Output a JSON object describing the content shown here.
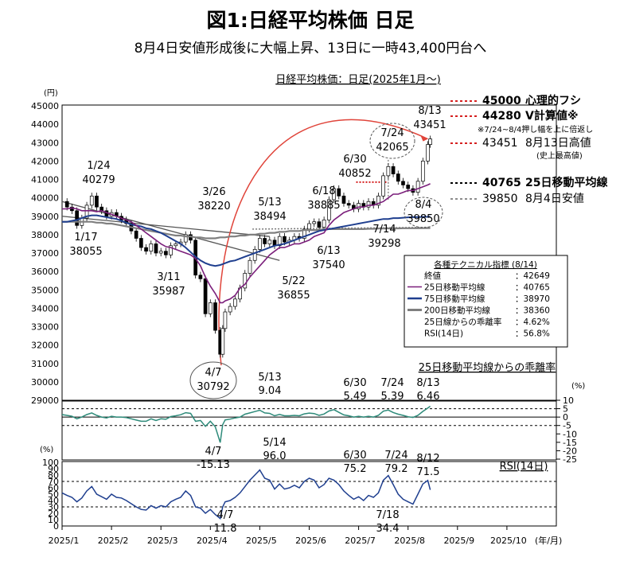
{
  "header": {
    "title": "図1:日経平均株価 日足",
    "subtitle": "8月4日安値形成後に大幅上昇、13日に一時43,400円台へ",
    "chart_title": "日経平均株価：日足(2025年1月～)"
  },
  "labels": {
    "yen_unit": "(円)",
    "pct_unit": "(%)",
    "pct_unit_rsi": "(%)",
    "year_month_unit": "(年/月)",
    "deviation_title": "25日移動平均線からの乖離率",
    "rsi_title": "RSI(14日)",
    "note": "※7/24~8/4押し幅を上に倍返し",
    "note2": "(史上最高値)"
  },
  "right_legend": [
    {
      "value": "45000",
      "label": "心理的フシ",
      "style": "red-dot",
      "bold": true
    },
    {
      "value": "44280",
      "label": "V計算値※",
      "style": "red-dot",
      "bold": true
    },
    {
      "value": "43451",
      "label": "8月13日高値",
      "style": "red-dot",
      "bold": false
    },
    {
      "value": "40765",
      "label": "25日移動平均線",
      "style": "black-dot",
      "bold": true
    },
    {
      "value": "39850",
      "label": "8月4日安値",
      "style": "gray-dot",
      "bold": false
    }
  ],
  "tech_box": {
    "title": "各種テクニカル指標 (8/14)",
    "rows": [
      {
        "label": "終値",
        "value": "：42649",
        "swatch": ""
      },
      {
        "label": "25日移動平均線",
        "value": "：40765",
        "swatch": "#7b1f7b"
      },
      {
        "label": "75日移動平均線",
        "value": "：38970",
        "swatch": "#1f3f8f"
      },
      {
        "label": "200日移動平均線",
        "value": "：38360",
        "swatch": "#7f7f7f"
      },
      {
        "label": "25日線からの乖離率",
        "value": "：4.62%",
        "swatch": ""
      },
      {
        "label": "RSI(14日)",
        "value": "：56.8%",
        "swatch": ""
      }
    ]
  },
  "colors": {
    "ma25": "#7b1f7b",
    "ma75": "#1f3f8f",
    "ma200": "#7f7f7f",
    "deviation": "#2e8b7a",
    "rsi": "#1f3f8f",
    "arc": "#e0443a",
    "red_dot": "#d62020"
  },
  "chart_data": {
    "type": "line",
    "price_axis": {
      "min": 29000,
      "max": 45000,
      "ticks": [
        29000,
        30000,
        31000,
        32000,
        33000,
        34000,
        35000,
        36000,
        37000,
        38000,
        39000,
        40000,
        41000,
        42000,
        43000,
        44000,
        45000
      ]
    },
    "deviation_axis": {
      "min": -25,
      "max": 10,
      "ticks": [
        10,
        5,
        0,
        -5,
        -10,
        -15,
        -20,
        -25
      ]
    },
    "rsi_axis": {
      "min": 0,
      "max": 100,
      "ticks": [
        0,
        10,
        20,
        30,
        40,
        50,
        60,
        70,
        80,
        90,
        100
      ]
    },
    "x_categories": [
      "2025/1",
      "2025/2",
      "2025/3",
      "2025/4",
      "2025/5",
      "2025/6",
      "2025/7",
      "2025/8",
      "2025/9",
      "2025/10"
    ],
    "price_annotations": [
      {
        "date": "1/17",
        "value": "38055"
      },
      {
        "date": "1/24",
        "value": "40279"
      },
      {
        "date": "3/11",
        "value": "35987"
      },
      {
        "date": "3/26",
        "value": "38220"
      },
      {
        "date": "4/7",
        "value": "30792"
      },
      {
        "date": "5/13",
        "value": "38494"
      },
      {
        "date": "5/22",
        "value": "36855"
      },
      {
        "date": "6/13",
        "value": "37540"
      },
      {
        "date": "6/18",
        "value": "38885"
      },
      {
        "date": "6/30",
        "value": "40852"
      },
      {
        "date": "7/14",
        "value": "39298"
      },
      {
        "date": "7/24",
        "value": "42065"
      },
      {
        "date": "8/4",
        "value": "39850"
      },
      {
        "date": "8/13",
        "value": "43451"
      }
    ],
    "deviation_annotations": [
      {
        "date": "5/13",
        "value": "9.04"
      },
      {
        "date": "6/30",
        "value": "5.49"
      },
      {
        "date": "7/24",
        "value": "5.39"
      },
      {
        "date": "8/13",
        "value": "6.46"
      },
      {
        "date": "4/7",
        "value": "-15.13"
      }
    ],
    "rsi_annotations": [
      {
        "date": "5/14",
        "value": "96.0"
      },
      {
        "date": "6/30",
        "value": "75.2"
      },
      {
        "date": "7/24",
        "value": "79.2"
      },
      {
        "date": "8/12",
        "value": "71.5"
      },
      {
        "date": "4/7",
        "value": "11.8"
      },
      {
        "date": "7/18",
        "value": "34.4"
      }
    ],
    "price_series": {
      "name": "日経平均株価",
      "months": [
        1.0,
        1.1,
        1.2,
        1.3,
        1.4,
        1.5,
        1.6,
        1.7,
        1.8,
        1.9,
        2.0,
        2.1,
        2.2,
        2.3,
        2.4,
        2.5,
        2.6,
        2.7,
        2.8,
        2.9,
        3.0,
        3.1,
        3.2,
        3.3,
        3.4,
        3.5,
        3.6,
        3.7,
        3.8,
        3.9,
        4.0,
        4.1,
        4.2,
        4.25,
        4.3,
        4.4,
        4.5,
        4.6,
        4.7,
        4.8,
        4.9,
        5.0,
        5.1,
        5.2,
        5.3,
        5.4,
        5.5,
        5.6,
        5.7,
        5.8,
        5.9,
        6.0,
        6.1,
        6.2,
        6.3,
        6.4,
        6.5,
        6.6,
        6.7,
        6.8,
        6.9,
        7.0,
        7.1,
        7.2,
        7.3,
        7.4,
        7.5,
        7.6,
        7.7,
        7.8,
        7.9,
        8.0,
        8.1,
        8.2,
        8.3,
        8.4,
        8.45
      ],
      "values": [
        39800,
        39500,
        39300,
        38500,
        38900,
        39600,
        40100,
        39500,
        39300,
        39000,
        39200,
        39000,
        38800,
        38600,
        38200,
        37800,
        37300,
        37100,
        37500,
        37000,
        37100,
        36900,
        37400,
        37500,
        37600,
        38000,
        37700,
        35800,
        35600,
        33700,
        34300,
        32800,
        31500,
        32900,
        33800,
        34100,
        34500,
        35100,
        35900,
        36600,
        37200,
        37800,
        37500,
        37700,
        37400,
        37900,
        37600,
        37700,
        37900,
        37800,
        38300,
        38600,
        38700,
        38400,
        38800,
        39900,
        40500,
        40100,
        39700,
        39600,
        39400,
        39700,
        39500,
        39800,
        39600,
        40100,
        41200,
        41700,
        41300,
        40900,
        40700,
        40500,
        40300,
        40900,
        42000,
        42900,
        43200
      ]
    },
    "ma25_values": [
      39400,
      39400,
      39450,
      39400,
      39300,
      39300,
      39300,
      39250,
      39300,
      39200,
      39100,
      39000,
      38900,
      38800,
      38700,
      38500,
      38300,
      38100,
      37900,
      37700,
      37500,
      37350,
      37300,
      37200,
      37100,
      37000,
      36900,
      36700,
      36300,
      35700,
      35200,
      34800,
      34300,
      34300,
      34400,
      34500,
      34700,
      35100,
      35300,
      35700,
      36000,
      36300,
      36600,
      36900,
      37100,
      37300,
      37300,
      37400,
      37500,
      37500,
      37600,
      37700,
      37900,
      38000,
      38100,
      38500,
      38800,
      39000,
      39200,
      39300,
      39400,
      39500,
      39500,
      39600,
      39600,
      39700,
      39800,
      40000,
      40200,
      40200,
      40300,
      40400,
      40400,
      40500,
      40600,
      40700,
      40765
    ],
    "ma75_values": [
      38700,
      38700,
      38750,
      38800,
      38900,
      39000,
      39050,
      39050,
      39000,
      38950,
      38900,
      38850,
      38750,
      38650,
      38550,
      38500,
      38450,
      38350,
      38300,
      38200,
      38100,
      37950,
      37800,
      37650,
      37500,
      37300,
      37050,
      36800,
      36600,
      36450,
      36350,
      36300,
      36350,
      36400,
      36450,
      36550,
      36600,
      36700,
      36800,
      36900,
      37000,
      37100,
      37200,
      37300,
      37400,
      37450,
      37500,
      37600,
      37700,
      37800,
      37900,
      38000,
      38100,
      38200,
      38250,
      38300,
      38350,
      38400,
      38450,
      38500,
      38550,
      38600,
      38650,
      38700,
      38750,
      38800,
      38850,
      38850,
      38900,
      38900,
      38920,
      38940,
      38950,
      38960,
      38965,
      38970,
      38970
    ],
    "ma200_values": [
      38700,
      38700,
      38700,
      38700,
      38700,
      38700,
      38700,
      38650,
      38650,
      38600,
      38600,
      38550,
      38500,
      38450,
      38400,
      38350,
      38300,
      38250,
      38200,
      38150,
      38100,
      38050,
      38000,
      37950,
      37950,
      37900,
      37900,
      37850,
      37850,
      37800,
      37800,
      37800,
      37850,
      37850,
      37850,
      37900,
      37900,
      37950,
      37950,
      38000,
      38000,
      38050,
      38050,
      38100,
      38100,
      38150,
      38150,
      38200,
      38200,
      38200,
      38250,
      38250,
      38250,
      38250,
      38300,
      38300,
      38300,
      38300,
      38300,
      38300,
      38300,
      38300,
      38300,
      38320,
      38320,
      38330,
      38330,
      38340,
      38340,
      38340,
      38350,
      38350,
      38350,
      38350,
      38355,
      38360,
      38360
    ],
    "deviation_values": [
      1.5,
      1.0,
      0.5,
      -1.0,
      0.0,
      1.5,
      2.5,
      1.0,
      0.0,
      -0.5,
      0.5,
      0.0,
      0.0,
      -0.3,
      -1.0,
      -1.8,
      -2.5,
      -2.5,
      -1.0,
      -2.0,
      -1.0,
      -1.3,
      0.3,
      0.8,
      1.4,
      2.6,
      2.2,
      -2.5,
      -2.0,
      -5.5,
      -2.5,
      -5.8,
      -15.13,
      -4.5,
      -1.7,
      -1.2,
      -0.5,
      0.0,
      1.7,
      2.5,
      3.3,
      4.1,
      2.5,
      2.2,
      0.8,
      1.6,
      0.8,
      0.8,
      1.0,
      0.8,
      1.9,
      2.4,
      2.1,
      1.0,
      1.8,
      3.6,
      4.4,
      2.8,
      1.3,
      0.8,
      0.0,
      0.5,
      0.0,
      0.5,
      0.0,
      1.0,
      3.5,
      4.2,
      2.7,
      1.7,
      1.0,
      0.2,
      -0.2,
      1.0,
      3.4,
      5.4,
      6.46
    ],
    "rsi_values": [
      52,
      48,
      45,
      38,
      44,
      55,
      62,
      50,
      46,
      42,
      50,
      45,
      44,
      40,
      35,
      30,
      26,
      25,
      32,
      28,
      32,
      30,
      38,
      42,
      45,
      55,
      48,
      30,
      28,
      20,
      26,
      18,
      11.8,
      30,
      38,
      40,
      45,
      52,
      62,
      72,
      80,
      88,
      75,
      72,
      58,
      66,
      58,
      60,
      64,
      60,
      70,
      75,
      72,
      60,
      65,
      75,
      72,
      65,
      55,
      48,
      42,
      46,
      40,
      48,
      45,
      52,
      72,
      79.2,
      65,
      50,
      42,
      38,
      34.4,
      50,
      66,
      71.5,
      56.8
    ]
  }
}
